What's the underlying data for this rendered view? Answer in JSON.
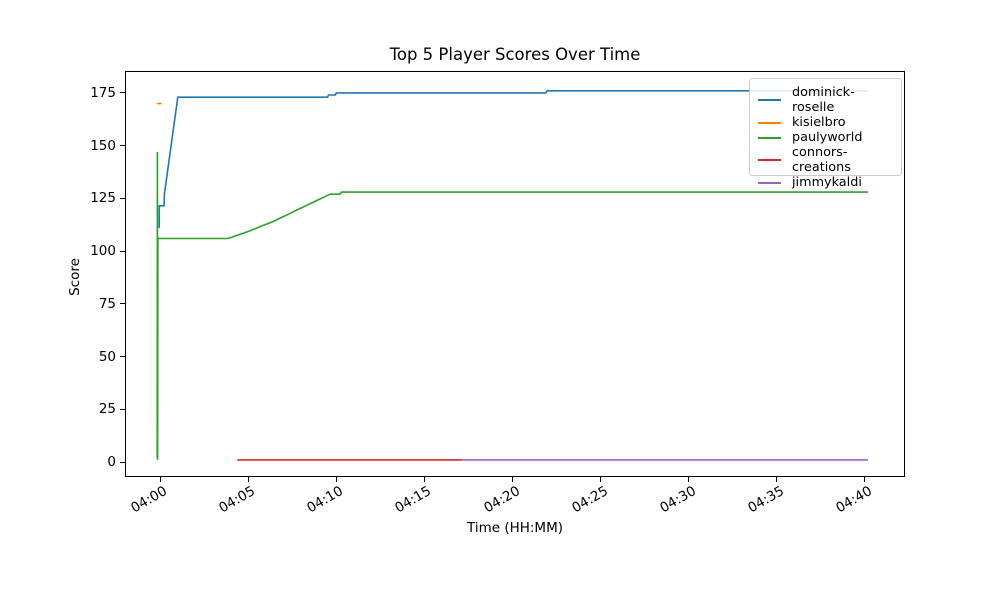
{
  "chart_data": {
    "type": "line",
    "title": "Top 5 Player Scores Over Time",
    "xlabel": "Time (HH:MM)",
    "ylabel": "Score",
    "x_unit": "minutes after 04:00",
    "xlim": [
      -2,
      42.3
    ],
    "ylim": [
      -7.1,
      185.4
    ],
    "grid": false,
    "legend_position": "upper right",
    "x_ticks": [
      {
        "t": 0,
        "label": "04:00"
      },
      {
        "t": 5,
        "label": "04:05"
      },
      {
        "t": 10,
        "label": "04:10"
      },
      {
        "t": 15,
        "label": "04:15"
      },
      {
        "t": 20,
        "label": "04:20"
      },
      {
        "t": 25,
        "label": "04:25"
      },
      {
        "t": 30,
        "label": "04:30"
      },
      {
        "t": 35,
        "label": "04:35"
      },
      {
        "t": 40,
        "label": "04:40"
      }
    ],
    "y_ticks": [
      {
        "v": 0,
        "label": "0"
      },
      {
        "v": 25,
        "label": "25"
      },
      {
        "v": 50,
        "label": "50"
      },
      {
        "v": 75,
        "label": "75"
      },
      {
        "v": 100,
        "label": "100"
      },
      {
        "v": 125,
        "label": "125"
      },
      {
        "v": 150,
        "label": "150"
      },
      {
        "v": 175,
        "label": "175"
      }
    ],
    "series": [
      {
        "name": "dominick-roselle",
        "color": "#1f77b4",
        "points": [
          [
            -0.06,
            111
          ],
          [
            -0.05,
            121.5
          ],
          [
            0.22,
            121.5
          ],
          [
            0.24,
            127
          ],
          [
            1.0,
            173
          ],
          [
            9.5,
            173
          ],
          [
            9.56,
            174
          ],
          [
            9.95,
            174
          ],
          [
            10.0,
            175
          ],
          [
            21.9,
            175
          ],
          [
            21.97,
            176
          ],
          [
            40.2,
            176
          ]
        ]
      },
      {
        "name": "kisielbro",
        "color": "#ff7f0e",
        "points": [
          [
            -0.18,
            170
          ],
          [
            0.08,
            170
          ]
        ]
      },
      {
        "name": "paulyworld",
        "color": "#2ca02c",
        "points": [
          [
            -0.17,
            2
          ],
          [
            -0.16,
            147
          ],
          [
            -0.15,
            1
          ],
          [
            -0.13,
            106
          ],
          [
            3.86,
            106
          ],
          [
            4.2,
            107
          ],
          [
            4.55,
            108
          ],
          [
            4.9,
            109
          ],
          [
            5.2,
            110
          ],
          [
            5.5,
            111
          ],
          [
            5.8,
            112
          ],
          [
            6.1,
            113
          ],
          [
            6.4,
            114
          ],
          [
            6.65,
            115
          ],
          [
            6.9,
            116
          ],
          [
            7.15,
            117
          ],
          [
            7.4,
            118
          ],
          [
            7.65,
            119
          ],
          [
            7.9,
            120
          ],
          [
            8.15,
            121
          ],
          [
            8.4,
            122
          ],
          [
            8.65,
            123
          ],
          [
            8.9,
            124
          ],
          [
            9.15,
            125
          ],
          [
            9.4,
            126
          ],
          [
            9.65,
            127
          ],
          [
            10.2,
            127
          ],
          [
            10.3,
            128
          ],
          [
            40.2,
            128
          ]
        ]
      },
      {
        "name": "connors-creations",
        "color": "#d62728",
        "points": [
          [
            4.38,
            1
          ],
          [
            17.15,
            1
          ]
        ]
      },
      {
        "name": "jimmykaldi",
        "color": "#9467bd",
        "points": [
          [
            17.15,
            1
          ],
          [
            40.2,
            1
          ]
        ]
      }
    ]
  }
}
